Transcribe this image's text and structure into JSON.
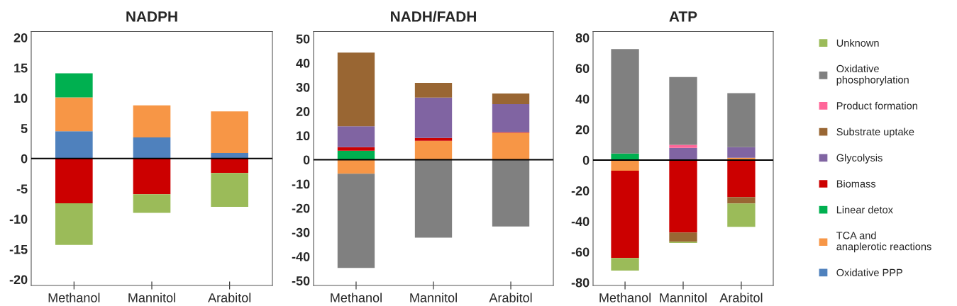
{
  "chart_data": [
    {
      "type": "bar",
      "title": "NADPH",
      "categories": [
        "Methanol",
        "Mannitol",
        "Arabitol"
      ],
      "stacked": true,
      "ylim": [
        -21,
        21
      ],
      "yticks": [
        -20,
        -15,
        -10,
        -5,
        0,
        5,
        10,
        15,
        20
      ],
      "grid": false,
      "ref_lines": [
        {
          "axis": "y",
          "value": 0,
          "color": "#000000"
        }
      ],
      "series": [
        {
          "color": "#4f81bd",
          "values": [
            4.5,
            3.5,
            0.9
          ]
        },
        {
          "color": "#f79646",
          "values": [
            5.6,
            5.3,
            6.9
          ]
        },
        {
          "color": "#00b050",
          "values": [
            4.0,
            null,
            null
          ]
        },
        {
          "color": "#cc0000",
          "values": [
            -7.4,
            -5.9,
            -2.4
          ]
        },
        {
          "color": "#9bbb59",
          "values": [
            -6.9,
            -3.1,
            -5.6
          ]
        }
      ]
    },
    {
      "type": "bar",
      "title": "NADH/FADH",
      "categories": [
        "Methanol",
        "Mannitol",
        "Arabitol"
      ],
      "stacked": true,
      "ylim": [
        -52,
        53
      ],
      "yticks": [
        -50,
        -40,
        -30,
        -20,
        -10,
        0,
        10,
        20,
        30,
        40,
        50
      ],
      "grid": false,
      "ref_lines": [
        {
          "axis": "y",
          "value": 0,
          "color": "#000000"
        }
      ],
      "series": [
        {
          "color": "#f79646",
          "values": [
            -5.8,
            7.8,
            11.1
          ]
        },
        {
          "color": "#00b050",
          "values": [
            3.7,
            null,
            null
          ]
        },
        {
          "color": "#cc0000",
          "values": [
            1.5,
            1.2,
            0.3
          ]
        },
        {
          "color": "#8064a2",
          "values": [
            8.6,
            16.7,
            11.6
          ]
        },
        {
          "color": "#996633",
          "values": [
            30.5,
            6.1,
            4.4
          ]
        },
        {
          "color": "#808080",
          "values": [
            -38.9,
            -32.2,
            -27.6
          ]
        }
      ]
    },
    {
      "type": "bar",
      "title": "ATP",
      "categories": [
        "Methanol",
        "Mannitol",
        "Arabitol"
      ],
      "stacked": true,
      "ylim": [
        -82,
        84
      ],
      "yticks": [
        -80,
        -60,
        -40,
        -20,
        0,
        20,
        40,
        60,
        80
      ],
      "grid": false,
      "legend": "right",
      "ref_lines": [
        {
          "axis": "y",
          "value": 0,
          "color": "#000000"
        }
      ],
      "series": [
        {
          "name": "Oxidative PPP",
          "color": "#4f81bd",
          "values": [
            null,
            null,
            null
          ]
        },
        {
          "name": "TCA and anaplerotic reactions",
          "color": "#f79646",
          "values": [
            -7.0,
            null,
            1.5
          ]
        },
        {
          "name": "Linear detox",
          "color": "#00b050",
          "values": [
            4.2,
            null,
            null
          ]
        },
        {
          "name": "Biomass",
          "color": "#cc0000",
          "values": [
            -57.0,
            -47.4,
            -24.2
          ]
        },
        {
          "name": "Glycolysis",
          "color": "#8064a2",
          "values": [
            null,
            7.9,
            6.9
          ]
        },
        {
          "name": "Substrate uptake",
          "color": "#996633",
          "values": [
            null,
            -6.0,
            -4.2
          ]
        },
        {
          "name": "Product formation",
          "color": "#ff6699",
          "values": [
            null,
            2.0,
            null
          ]
        },
        {
          "name": "Oxidative phosphorylation",
          "color": "#808080",
          "values": [
            68.3,
            44.3,
            35.3
          ]
        },
        {
          "name": "Unknown",
          "color": "#9bbb59",
          "values": [
            -8.3,
            -0.8,
            -15.3
          ]
        }
      ]
    }
  ]
}
